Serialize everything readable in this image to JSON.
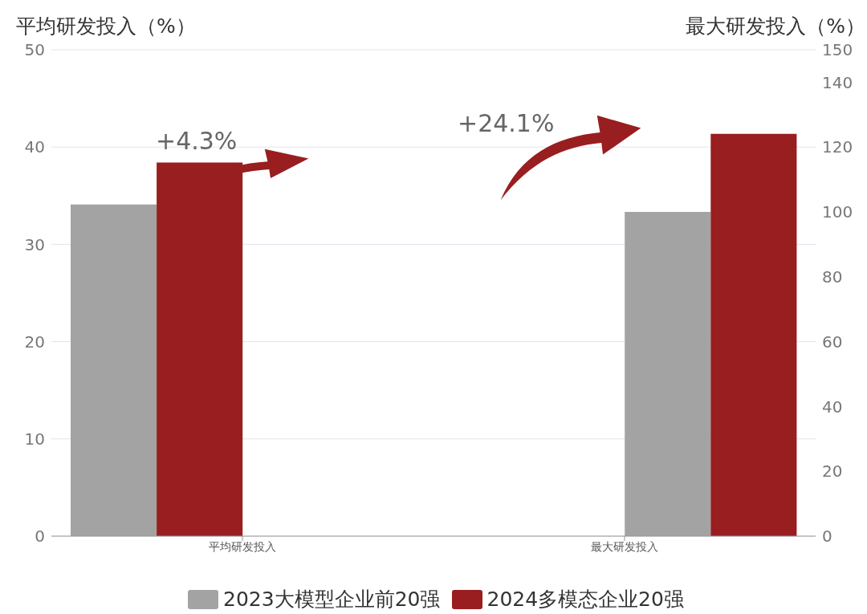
{
  "chart_data": {
    "type": "bar",
    "ylabel": "平均研发投入（%）",
    "y2label": "最大研发投入（%）",
    "categories": [
      "平均研发投入",
      "最大研发投入"
    ],
    "series": [
      {
        "name": "2023大模型企业前20强",
        "color": "#a3a3a3",
        "values": [
          34.1,
          null
        ]
      },
      {
        "name": "2024多模态企业20强",
        "color": "#981e20",
        "values": [
          38.4,
          null
        ]
      },
      {
        "color": "#a3a3a3",
        "values": [
          null,
          100
        ],
        "axis": "y2"
      },
      {
        "color": "#981e20",
        "values": [
          null,
          124.1
        ],
        "axis": "y2"
      }
    ],
    "ylim": [
      0,
      50
    ],
    "yticks": [
      0,
      10,
      20,
      30,
      40,
      50
    ],
    "y2lim": [
      0,
      150
    ],
    "y2ticks": [
      0,
      20,
      40,
      60,
      80,
      100,
      120,
      140,
      150
    ],
    "annotations": [
      "+4.3%",
      "+24.1%"
    ],
    "grid": "y",
    "legend": "bottom"
  }
}
